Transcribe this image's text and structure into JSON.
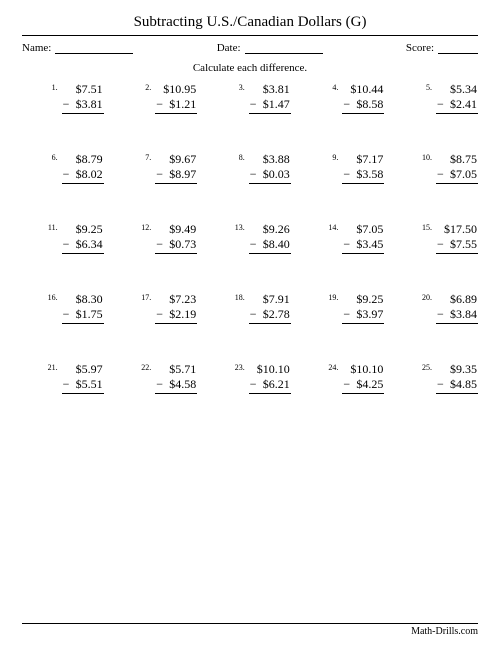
{
  "title": "Subtracting U.S./Canadian Dollars (G)",
  "header": {
    "name_label": "Name:",
    "date_label": "Date:",
    "score_label": "Score:"
  },
  "instruction": "Calculate each difference.",
  "problems": [
    {
      "n": "1.",
      "top": "$7.51",
      "bot": "$3.81"
    },
    {
      "n": "2.",
      "top": "$10.95",
      "bot": "$1.21"
    },
    {
      "n": "3.",
      "top": "$3.81",
      "bot": "$1.47"
    },
    {
      "n": "4.",
      "top": "$10.44",
      "bot": "$8.58"
    },
    {
      "n": "5.",
      "top": "$5.34",
      "bot": "$2.41"
    },
    {
      "n": "6.",
      "top": "$8.79",
      "bot": "$8.02"
    },
    {
      "n": "7.",
      "top": "$9.67",
      "bot": "$8.97"
    },
    {
      "n": "8.",
      "top": "$3.88",
      "bot": "$0.03"
    },
    {
      "n": "9.",
      "top": "$7.17",
      "bot": "$3.58"
    },
    {
      "n": "10.",
      "top": "$8.75",
      "bot": "$7.05"
    },
    {
      "n": "11.",
      "top": "$9.25",
      "bot": "$6.34"
    },
    {
      "n": "12.",
      "top": "$9.49",
      "bot": "$0.73"
    },
    {
      "n": "13.",
      "top": "$9.26",
      "bot": "$8.40"
    },
    {
      "n": "14.",
      "top": "$7.05",
      "bot": "$3.45"
    },
    {
      "n": "15.",
      "top": "$17.50",
      "bot": "$7.55"
    },
    {
      "n": "16.",
      "top": "$8.30",
      "bot": "$1.75"
    },
    {
      "n": "17.",
      "top": "$7.23",
      "bot": "$2.19"
    },
    {
      "n": "18.",
      "top": "$7.91",
      "bot": "$2.78"
    },
    {
      "n": "19.",
      "top": "$9.25",
      "bot": "$3.97"
    },
    {
      "n": "20.",
      "top": "$6.89",
      "bot": "$3.84"
    },
    {
      "n": "21.",
      "top": "$5.97",
      "bot": "$5.51"
    },
    {
      "n": "22.",
      "top": "$5.71",
      "bot": "$4.58"
    },
    {
      "n": "23.",
      "top": "$10.10",
      "bot": "$6.21"
    },
    {
      "n": "24.",
      "top": "$10.10",
      "bot": "$4.25"
    },
    {
      "n": "25.",
      "top": "$9.35",
      "bot": "$4.85"
    }
  ],
  "footer": "Math-Drills.com",
  "style": {
    "name_line_width": 78,
    "date_line_width": 78,
    "score_line_width": 40
  }
}
